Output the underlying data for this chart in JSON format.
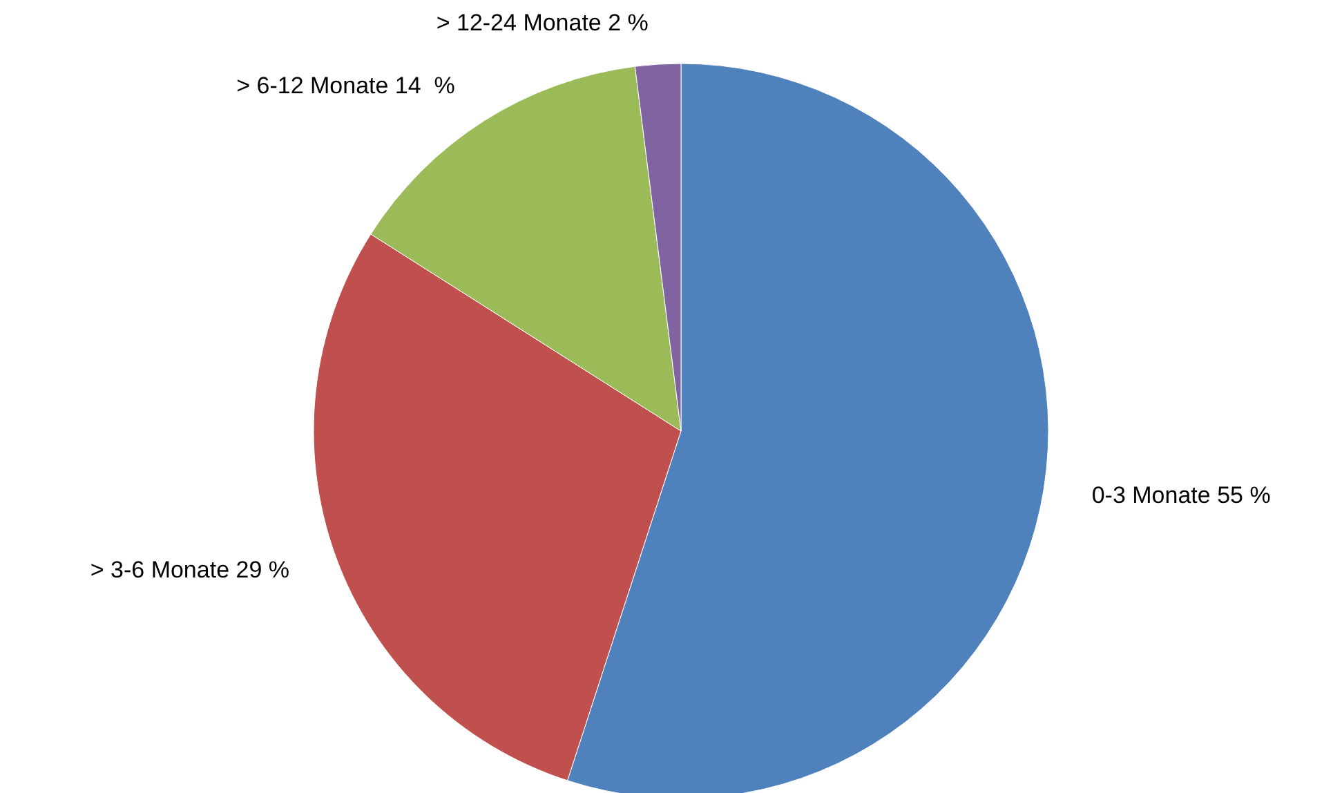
{
  "chart_data": {
    "type": "pie",
    "categories": [
      "0-3 Monate",
      "> 3-6 Monate",
      "> 6-12 Monate",
      "> 12-24 Monate"
    ],
    "values": [
      55,
      29,
      14,
      2
    ],
    "value_labels": [
      "55 %",
      "29 %",
      "14  %",
      "2 %"
    ],
    "colors": [
      "#4f81bd",
      "#c0504d",
      "#9bbb59",
      "#8064a2"
    ],
    "legend": false
  }
}
